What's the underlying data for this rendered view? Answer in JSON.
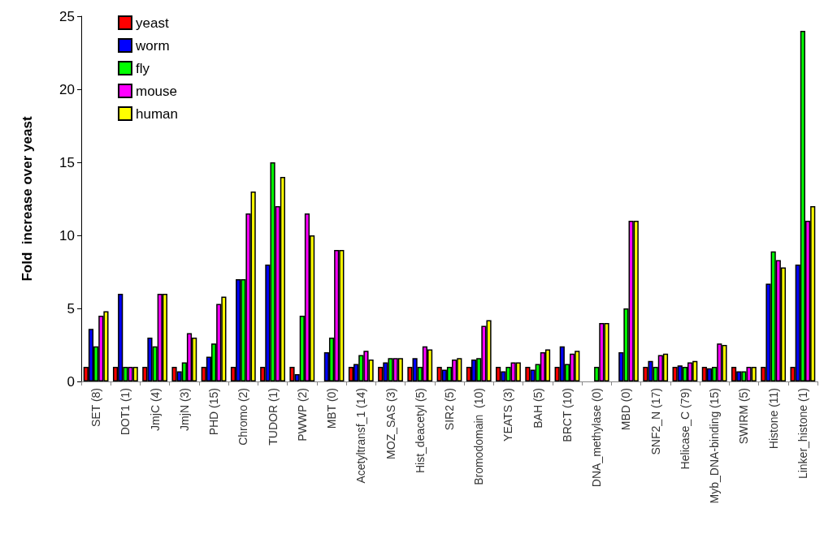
{
  "chart_data": {
    "type": "bar",
    "ylabel": "Fold  increase over yeast",
    "categories": [
      "SET (8)",
      "DOT1 (1)",
      "JmjC (4)",
      "JmjN (3)",
      "PHD (15)",
      "Chromo (2)",
      "TUDOR (1)",
      "PWWP (2)",
      "MBT (0)",
      "Acetyltransf_1 (14)",
      "MOZ_SAS (3)",
      "Hist_deacetyl (5)",
      "SIR2 (5)",
      "Bromodomain  (10)",
      "YEATS (3)",
      "BAH (5)",
      "BRCT (10)",
      "DNA_methylase (0)",
      "MBD (0)",
      "SNF2_N (17)",
      "Helicase_C (79)",
      "Myb_DNA-binding (15)",
      "SWIRM (5)",
      "Histone (11)",
      "Linker_histone (1)"
    ],
    "series": [
      {
        "name": "yeast",
        "color": "#ff0000",
        "values": [
          1,
          1,
          1,
          1,
          1,
          1,
          1,
          1,
          null,
          1,
          1,
          1,
          1,
          1,
          1,
          1,
          1,
          null,
          null,
          1,
          1,
          1,
          1,
          1,
          1
        ]
      },
      {
        "name": "worm",
        "color": "#0000ff",
        "values": [
          3.6,
          6,
          3,
          0.7,
          1.7,
          7,
          8,
          0.5,
          2,
          1.2,
          1.3,
          1.6,
          0.8,
          1.5,
          0.7,
          0.8,
          2.4,
          null,
          2,
          1.4,
          1.1,
          0.9,
          0.7,
          6.7,
          8
        ]
      },
      {
        "name": "fly",
        "color": "#00ff00",
        "values": [
          2.4,
          1,
          2.4,
          1.3,
          2.6,
          7,
          15,
          4.5,
          3,
          1.8,
          1.6,
          1,
          1,
          1.6,
          1,
          1.2,
          1.2,
          1,
          5,
          1,
          1,
          1,
          0.7,
          8.9,
          24
        ]
      },
      {
        "name": "mouse",
        "color": "#ff00ff",
        "values": [
          4.5,
          1,
          6,
          3.3,
          5.3,
          11.5,
          12,
          11.5,
          9,
          2.1,
          1.6,
          2.4,
          1.5,
          3.8,
          1.3,
          2,
          1.9,
          4,
          11,
          1.8,
          1.3,
          2.6,
          1,
          8.3,
          11
        ]
      },
      {
        "name": "human",
        "color": "#ffff00",
        "values": [
          4.8,
          1,
          6,
          3,
          5.8,
          13,
          14,
          10,
          9,
          1.5,
          1.6,
          2.2,
          1.6,
          4.2,
          1.3,
          2.2,
          2.1,
          4,
          11,
          1.9,
          1.4,
          2.5,
          1,
          7.8,
          12
        ]
      }
    ],
    "ylim": [
      0,
      25
    ],
    "yticks": [
      0,
      5,
      10,
      15,
      20,
      25
    ],
    "legend": "top left",
    "grid": false
  }
}
